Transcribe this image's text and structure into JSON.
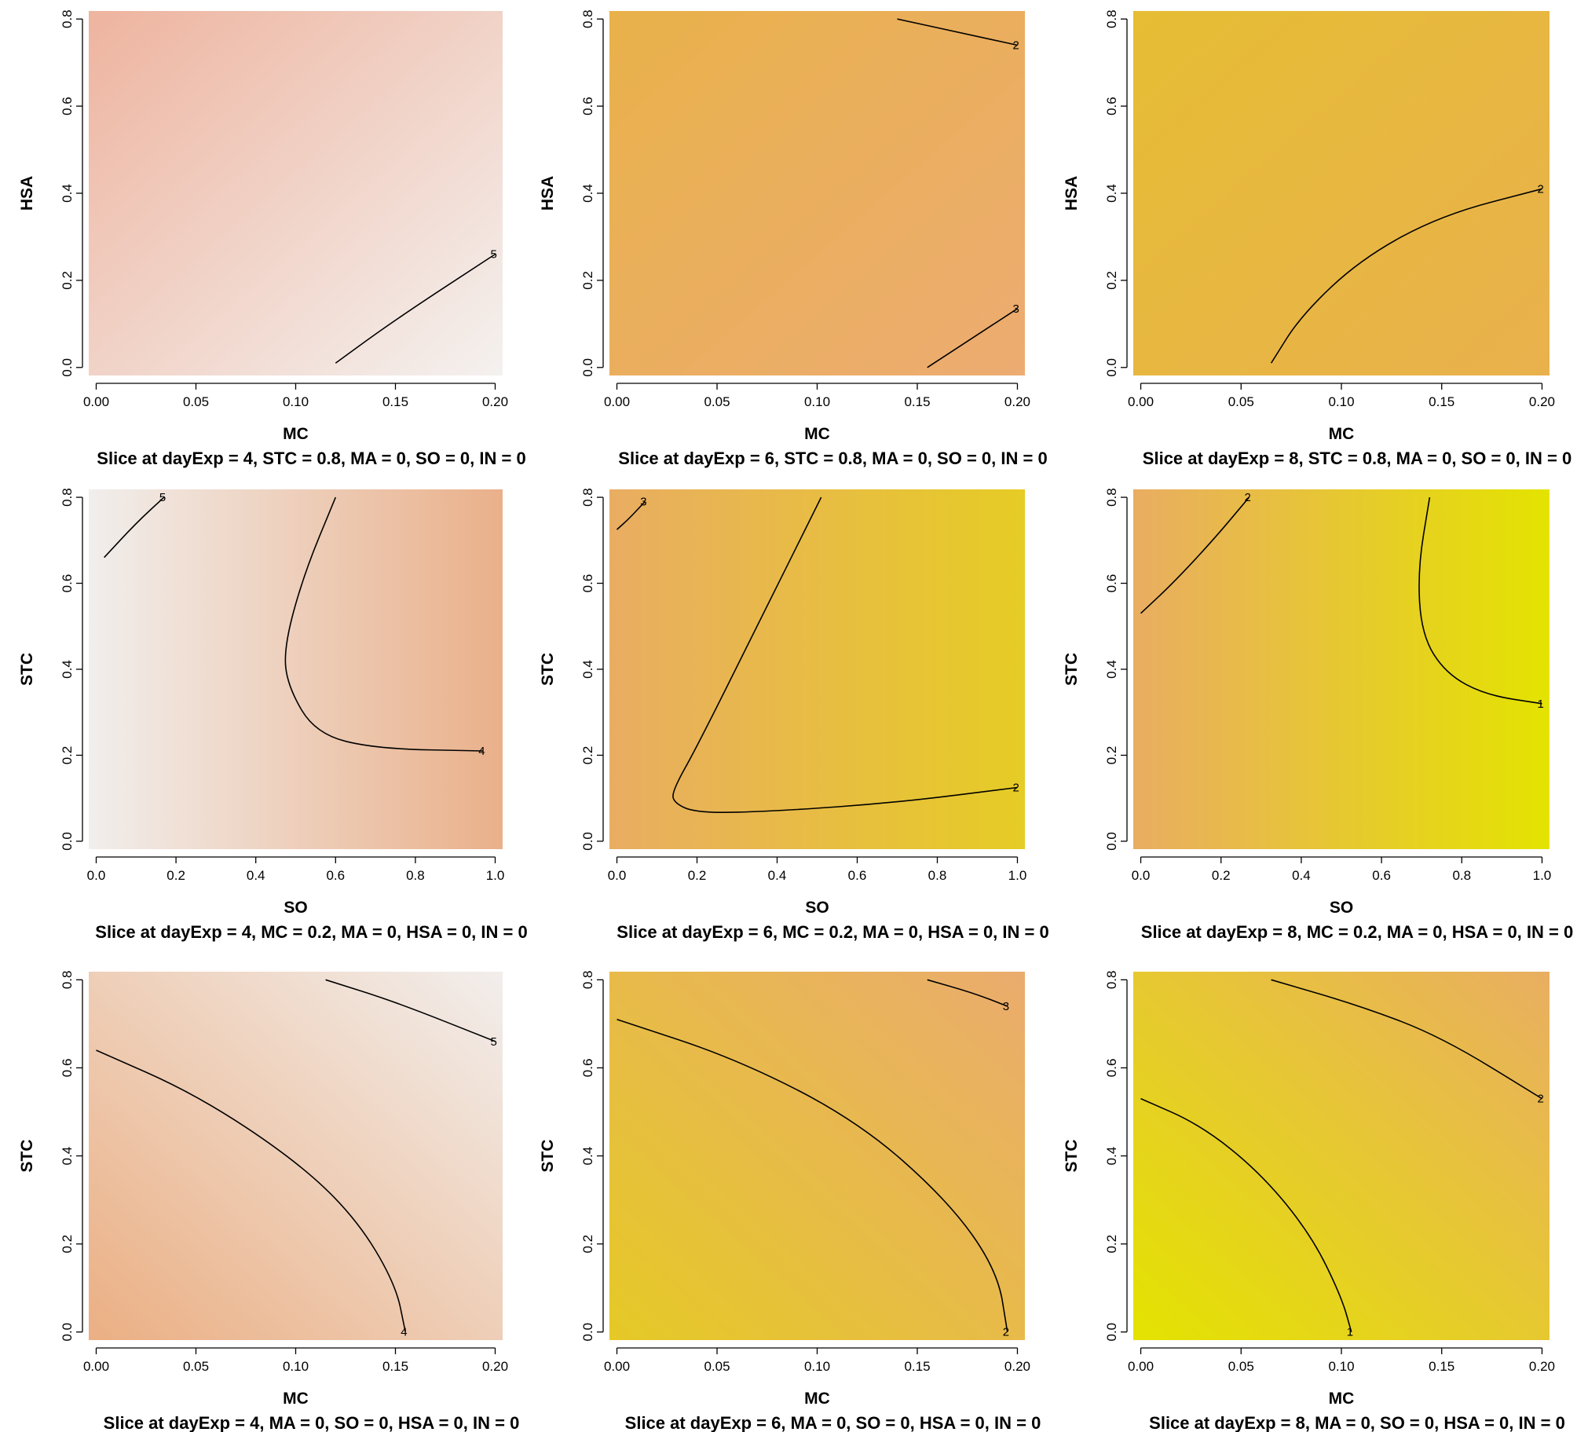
{
  "chart_data": [
    {
      "type": "heatmap",
      "title": "Slice at dayExp = 4, STC = 0.8, MA = 0, SO = 0, IN = 0",
      "xlabel": "MC",
      "ylabel": "HSA",
      "xlim": [
        0,
        0.2
      ],
      "ylim": [
        0,
        0.8
      ],
      "xticks": [
        "0.00",
        "0.05",
        "0.10",
        "0.15",
        "0.20"
      ],
      "yticks": [
        "0.0",
        "0.2",
        "0.4",
        "0.6",
        "0.8"
      ],
      "colors": {
        "low_corner": "#eeb49f",
        "high_corner": "#f4f1ef"
      },
      "color_gradient": "toward-bottom-right",
      "contours": [
        {
          "level": "5",
          "points": [
            [
              0.12,
              0.01
            ],
            [
              0.15,
              0.11
            ],
            [
              0.2,
              0.26
            ]
          ]
        }
      ]
    },
    {
      "type": "heatmap",
      "title": "Slice at dayExp = 6, STC = 0.8, MA = 0, SO = 0, IN = 0",
      "xlabel": "MC",
      "ylabel": "HSA",
      "xlim": [
        0,
        0.2
      ],
      "ylim": [
        0,
        0.8
      ],
      "xticks": [
        "0.00",
        "0.05",
        "0.10",
        "0.15",
        "0.20"
      ],
      "yticks": [
        "0.0",
        "0.2",
        "0.4",
        "0.6",
        "0.8"
      ],
      "colors": {
        "low_corner": "#e9b14a",
        "high_corner": "#ecac72"
      },
      "color_gradient": "toward-bottom-right",
      "contours": [
        {
          "level": "2",
          "points": [
            [
              0.14,
              0.8
            ],
            [
              0.17,
              0.77
            ],
            [
              0.2,
              0.74
            ]
          ]
        },
        {
          "level": "3",
          "points": [
            [
              0.155,
              0.0
            ],
            [
              0.175,
              0.06
            ],
            [
              0.2,
              0.135
            ]
          ]
        }
      ]
    },
    {
      "type": "heatmap",
      "title": "Slice at dayExp = 8, STC = 0.8, MA = 0, SO = 0, IN = 0",
      "xlabel": "MC",
      "ylabel": "HSA",
      "xlim": [
        0,
        0.2
      ],
      "ylim": [
        0,
        0.8
      ],
      "xticks": [
        "0.00",
        "0.05",
        "0.10",
        "0.15",
        "0.20"
      ],
      "yticks": [
        "0.0",
        "0.2",
        "0.4",
        "0.6",
        "0.8"
      ],
      "colors": {
        "low_corner": "#e6bd34",
        "high_corner": "#e9b14d"
      },
      "color_gradient": "toward-bottom-right",
      "contours": [
        {
          "level": "2",
          "points": [
            [
              0.065,
              0.01
            ],
            [
              0.08,
              0.12
            ],
            [
              0.11,
              0.25
            ],
            [
              0.15,
              0.35
            ],
            [
              0.2,
              0.41
            ]
          ]
        }
      ]
    },
    {
      "type": "heatmap",
      "title": "Slice at dayExp = 4, MC = 0.2, MA = 0, HSA = 0, IN = 0",
      "xlabel": "SO",
      "ylabel": "STC",
      "xlim": [
        0,
        1.0
      ],
      "ylim": [
        0,
        0.8
      ],
      "xticks": [
        "0.0",
        "0.2",
        "0.4",
        "0.6",
        "0.8",
        "1.0"
      ],
      "yticks": [
        "0.0",
        "0.2",
        "0.4",
        "0.6",
        "0.8"
      ],
      "colors": {
        "low_corner": "#f1eeec",
        "high_corner": "#eab08a"
      },
      "color_gradient": "toward-right",
      "contours": [
        {
          "level": "5",
          "points": [
            [
              0.02,
              0.66
            ],
            [
              0.1,
              0.74
            ],
            [
              0.17,
              0.8
            ]
          ]
        },
        {
          "level": "4",
          "points": [
            [
              0.6,
              0.8
            ],
            [
              0.52,
              0.62
            ],
            [
              0.47,
              0.45
            ],
            [
              0.48,
              0.36
            ],
            [
              0.55,
              0.25
            ],
            [
              0.7,
              0.215
            ],
            [
              0.97,
              0.21
            ]
          ]
        }
      ]
    },
    {
      "type": "heatmap",
      "title": "Slice at dayExp = 6, MC = 0.2, MA = 0, HSA = 0, IN = 0",
      "xlabel": "SO",
      "ylabel": "STC",
      "xlim": [
        0,
        1.0
      ],
      "ylim": [
        0,
        0.8
      ],
      "xticks": [
        "0.0",
        "0.2",
        "0.4",
        "0.6",
        "0.8",
        "1.0"
      ],
      "yticks": [
        "0.0",
        "0.2",
        "0.4",
        "0.6",
        "0.8"
      ],
      "colors": {
        "low_corner": "#e9ad62",
        "high_corner": "#e6cc25"
      },
      "color_gradient": "toward-right",
      "contours": [
        {
          "level": "3",
          "points": [
            [
              0.0,
              0.725
            ],
            [
              0.03,
              0.75
            ],
            [
              0.07,
              0.79
            ]
          ]
        },
        {
          "level": "2",
          "points": [
            [
              0.51,
              0.8
            ],
            [
              0.35,
              0.5
            ],
            [
              0.2,
              0.22
            ],
            [
              0.14,
              0.12
            ],
            [
              0.14,
              0.09
            ],
            [
              0.2,
              0.065
            ],
            [
              0.4,
              0.07
            ],
            [
              0.7,
              0.09
            ],
            [
              1.0,
              0.125
            ]
          ]
        }
      ]
    },
    {
      "type": "heatmap",
      "title": "Slice at dayExp = 8, MC = 0.2, MA = 0, HSA = 0, IN = 0",
      "xlabel": "SO",
      "ylabel": "STC",
      "xlim": [
        0,
        1.0
      ],
      "ylim": [
        0,
        0.8
      ],
      "xticks": [
        "0.0",
        "0.2",
        "0.4",
        "0.6",
        "0.8",
        "1.0"
      ],
      "yticks": [
        "0.0",
        "0.2",
        "0.4",
        "0.6",
        "0.8"
      ],
      "colors": {
        "low_corner": "#e9ad62",
        "high_corner": "#e4e300"
      },
      "color_gradient": "toward-right",
      "contours": [
        {
          "level": "2",
          "points": [
            [
              0.0,
              0.53
            ],
            [
              0.08,
              0.6
            ],
            [
              0.18,
              0.7
            ],
            [
              0.27,
              0.8
            ]
          ]
        },
        {
          "level": "1",
          "points": [
            [
              0.72,
              0.8
            ],
            [
              0.69,
              0.63
            ],
            [
              0.7,
              0.48
            ],
            [
              0.76,
              0.39
            ],
            [
              0.86,
              0.34
            ],
            [
              1.0,
              0.32
            ]
          ]
        }
      ]
    },
    {
      "type": "heatmap",
      "title": "Slice at dayExp = 4, MA = 0, SO = 0, HSA = 0, IN = 0",
      "xlabel": "MC",
      "ylabel": "STC",
      "xlim": [
        0,
        0.2
      ],
      "ylim": [
        0,
        0.8
      ],
      "xticks": [
        "0.00",
        "0.05",
        "0.10",
        "0.15",
        "0.20"
      ],
      "yticks": [
        "0.0",
        "0.2",
        "0.4",
        "0.6",
        "0.8"
      ],
      "colors": {
        "low_corner": "#ebaf83",
        "high_corner": "#f2eeec"
      },
      "color_gradient": "toward-top-right",
      "contours": [
        {
          "level": "5",
          "points": [
            [
              0.115,
              0.8
            ],
            [
              0.15,
              0.75
            ],
            [
              0.2,
              0.66
            ]
          ]
        },
        {
          "level": "4",
          "points": [
            [
              0.0,
              0.64
            ],
            [
              0.05,
              0.54
            ],
            [
              0.1,
              0.39
            ],
            [
              0.13,
              0.26
            ],
            [
              0.15,
              0.11
            ],
            [
              0.155,
              0.0
            ]
          ]
        }
      ]
    },
    {
      "type": "heatmap",
      "title": "Slice at dayExp = 6, MA = 0, SO = 0, HSA = 0, IN = 0",
      "xlabel": "MC",
      "ylabel": "STC",
      "xlim": [
        0,
        0.2
      ],
      "ylim": [
        0,
        0.8
      ],
      "xticks": [
        "0.00",
        "0.05",
        "0.10",
        "0.15",
        "0.20"
      ],
      "yticks": [
        "0.0",
        "0.2",
        "0.4",
        "0.6",
        "0.8"
      ],
      "colors": {
        "low_corner": "#e5c926",
        "high_corner": "#eaac6e"
      },
      "color_gradient": "toward-top-right",
      "contours": [
        {
          "level": "3",
          "points": [
            [
              0.155,
              0.8
            ],
            [
              0.178,
              0.77
            ],
            [
              0.195,
              0.74
            ]
          ]
        },
        {
          "level": "2",
          "points": [
            [
              0.0,
              0.71
            ],
            [
              0.06,
              0.62
            ],
            [
              0.12,
              0.48
            ],
            [
              0.165,
              0.3
            ],
            [
              0.19,
              0.14
            ],
            [
              0.195,
              0.0
            ]
          ]
        }
      ]
    },
    {
      "type": "heatmap",
      "title": "Slice at dayExp = 8, MA = 0, SO = 0, HSA = 0, IN = 0",
      "xlabel": "MC",
      "ylabel": "STC",
      "xlim": [
        0,
        0.2
      ],
      "ylim": [
        0,
        0.8
      ],
      "xticks": [
        "0.00",
        "0.05",
        "0.10",
        "0.15",
        "0.20"
      ],
      "yticks": [
        "0.0",
        "0.2",
        "0.4",
        "0.6",
        "0.8"
      ],
      "colors": {
        "low_corner": "#e4e300",
        "high_corner": "#e9ae62"
      },
      "color_gradient": "toward-top-right",
      "contours": [
        {
          "level": "2",
          "points": [
            [
              0.065,
              0.8
            ],
            [
              0.11,
              0.74
            ],
            [
              0.15,
              0.67
            ],
            [
              0.2,
              0.53
            ]
          ]
        },
        {
          "level": "1",
          "points": [
            [
              0.0,
              0.53
            ],
            [
              0.03,
              0.47
            ],
            [
              0.06,
              0.36
            ],
            [
              0.085,
              0.22
            ],
            [
              0.1,
              0.08
            ],
            [
              0.105,
              0.0
            ]
          ]
        }
      ]
    }
  ]
}
